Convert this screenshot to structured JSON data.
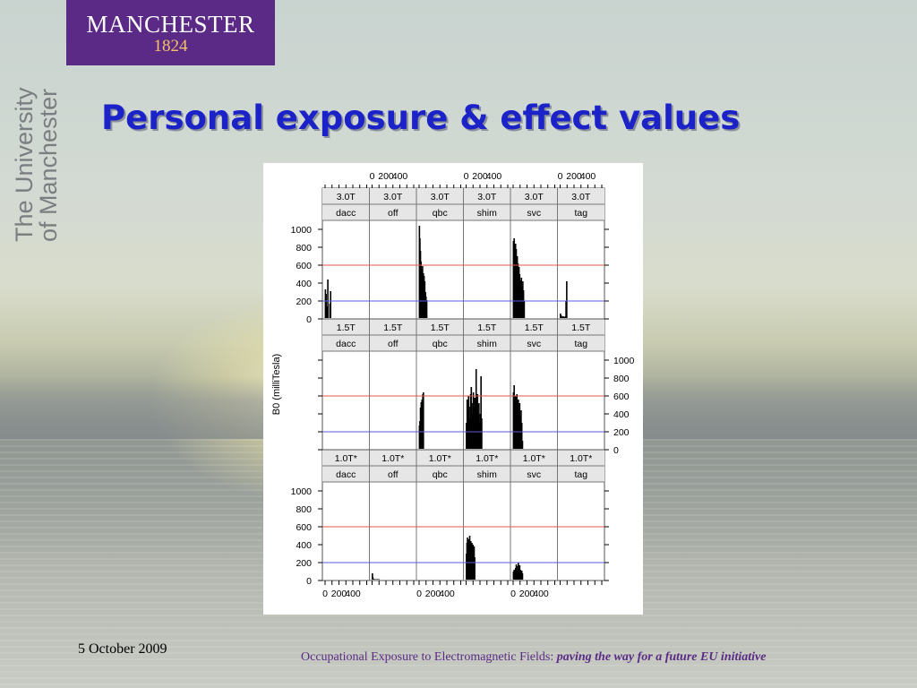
{
  "branding": {
    "logo_name": "MANCHESTER",
    "logo_year": "1824",
    "side_line1": "The University",
    "side_line2": "of Manchester"
  },
  "slide": {
    "title": "Personal exposure & effect values",
    "date": "5 October 2009",
    "footer_plain": "Occupational Exposure to Electromagnetic Fields: ",
    "footer_emphasis": "paving the way for a future EU initiative"
  },
  "colors": {
    "title": "#1a22c8",
    "logo_bg": "#5b2a86",
    "ref_red": "#e05a4a",
    "ref_blue": "#5a5ae0",
    "bars": "#000000"
  },
  "chart_data": {
    "type": "bar",
    "layout": "trellis 6 x 3",
    "ylabel": "B0 (milliTesla)",
    "xlabel": "",
    "x_ticks": [
      0,
      200,
      400
    ],
    "y_ticks": [
      0,
      200,
      400,
      600,
      800,
      1000
    ],
    "xlim": [
      0,
      600
    ],
    "ylim": [
      0,
      1100
    ],
    "reference_lines": [
      {
        "value": 600,
        "color": "#e05a4a"
      },
      {
        "value": 200,
        "color": "#5a5ae0"
      }
    ],
    "columns": [
      "dacc",
      "off",
      "qbc",
      "shim",
      "svc",
      "tag"
    ],
    "rows": [
      {
        "field": "3.0T",
        "panels": [
          {
            "field": "3.0T",
            "group": "dacc",
            "x": [
              5,
              15,
              25,
              40,
              70,
              80
            ],
            "values": [
              330,
              280,
              140,
              440,
              170,
              310
            ]
          },
          {
            "field": "3.0T",
            "group": "off",
            "x": [],
            "values": []
          },
          {
            "field": "3.0T",
            "group": "qbc",
            "x": [
              5,
              12,
              20,
              28,
              38,
              50,
              62,
              72,
              82,
              92,
              100,
              110
            ],
            "values": [
              1040,
              900,
              760,
              640,
              560,
              590,
              510,
              480,
              420,
              300,
              250,
              210
            ]
          },
          {
            "field": "3.0T",
            "group": "shim",
            "x": [],
            "values": []
          },
          {
            "field": "3.0T",
            "group": "svc",
            "x": [
              5,
              10,
              15,
              20,
              25,
              30,
              35,
              40,
              45,
              50,
              55,
              60,
              65,
              70,
              75,
              80,
              85,
              90,
              95,
              100,
              110,
              120,
              130,
              140,
              150,
              160
            ],
            "values": [
              870,
              820,
              900,
              760,
              810,
              720,
              840,
              650,
              780,
              600,
              560,
              700,
              480,
              620,
              520,
              450,
              580,
              400,
              500,
              430,
              380,
              460,
              350,
              420,
              320,
              200
            ]
          },
          {
            "field": "3.0T",
            "group": "tag",
            "x": [
              5,
              15,
              30,
              45,
              60,
              75,
              85,
              95
            ],
            "values": [
              60,
              40,
              25,
              30,
              20,
              30,
              200,
              420
            ]
          }
        ]
      },
      {
        "field": "1.5T",
        "panels": [
          {
            "field": "1.5T",
            "group": "dacc",
            "x": [],
            "values": []
          },
          {
            "field": "1.5T",
            "group": "off",
            "x": [],
            "values": []
          },
          {
            "field": "1.5T",
            "group": "qbc",
            "x": [
              5,
              12,
              20,
              30,
              42,
              54,
              62
            ],
            "values": [
              270,
              320,
              470,
              530,
              560,
              620,
              640
            ]
          },
          {
            "field": "1.5T",
            "group": "shim",
            "x": [
              5,
              15,
              25,
              35,
              45,
              55,
              65,
              75,
              85,
              95,
              105,
              115,
              125,
              135,
              145,
              155,
              165,
              175,
              185,
              195,
              205,
              215,
              225
            ],
            "values": [
              300,
              560,
              420,
              600,
              480,
              350,
              620,
              700,
              520,
              400,
              640,
              480,
              580,
              300,
              900,
              450,
              620,
              380,
              520,
              300,
              400,
              820,
              350
            ]
          },
          {
            "field": "1.5T",
            "group": "svc",
            "x": [
              5,
              15,
              25,
              35,
              45,
              55,
              65,
              75,
              85,
              95,
              105,
              115,
              125,
              135
            ],
            "values": [
              640,
              720,
              560,
              600,
              500,
              620,
              480,
              560,
              400,
              520,
              380,
              440,
              300,
              100
            ]
          },
          {
            "field": "1.5T",
            "group": "tag",
            "x": [],
            "values": []
          }
        ]
      },
      {
        "field": "1.0T*",
        "panels": [
          {
            "field": "1.0T*",
            "group": "dacc",
            "x": [],
            "values": []
          },
          {
            "field": "1.0T*",
            "group": "off",
            "x": [
              5,
              10,
              20,
              40,
              60,
              80,
              100
            ],
            "values": [
              80,
              40,
              20,
              15,
              15,
              15,
              15
            ]
          },
          {
            "field": "1.0T*",
            "group": "qbc",
            "x": [],
            "values": []
          },
          {
            "field": "1.0T*",
            "group": "shim",
            "x": [
              5,
              12,
              20,
              28,
              36,
              44,
              52,
              60,
              68,
              76,
              84,
              92,
              100,
              108,
              116,
              124
            ],
            "values": [
              300,
              420,
              480,
              350,
              460,
              380,
              500,
              320,
              440,
              360,
              420,
              280,
              400,
              300,
              380,
              260
            ]
          },
          {
            "field": "1.0T*",
            "group": "svc",
            "x": [
              5,
              15,
              25,
              35,
              45,
              55,
              65,
              75,
              85,
              95,
              105,
              115,
              125,
              135
            ],
            "values": [
              100,
              120,
              90,
              140,
              180,
              110,
              160,
              200,
              130,
              170,
              120,
              90,
              110,
              80
            ]
          },
          {
            "field": "1.0T*",
            "group": "tag",
            "x": [],
            "values": []
          }
        ]
      }
    ]
  }
}
